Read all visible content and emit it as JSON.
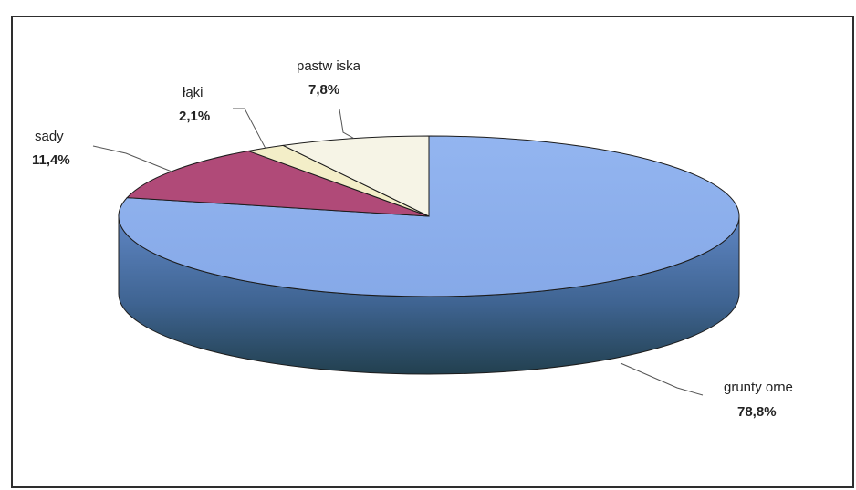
{
  "chart_data": {
    "type": "pie",
    "title": "",
    "slices": [
      {
        "label": "grunty orne",
        "value": 78.8,
        "value_label": "78,8%",
        "color": "#8fb1ee"
      },
      {
        "label": "sady",
        "value": 11.4,
        "value_label": "11,4%",
        "color": "#b04a78"
      },
      {
        "label": "łąki",
        "value": 2.1,
        "value_label": "2,1%",
        "color": "#f3eec8"
      },
      {
        "label": "pastw iska",
        "value": 7.8,
        "value_label": "7,8%",
        "color": "#f6f4e6"
      }
    ],
    "style": "3d",
    "legend": "none",
    "data_labels": "outside-with-leader-lines"
  }
}
